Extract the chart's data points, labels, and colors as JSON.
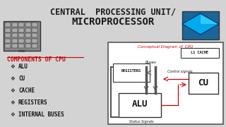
{
  "title_line1": "CENTRAL  PROCESSING UNIT/",
  "title_line2": "MICROPROCESSOR",
  "bg_color": "#d3d3d3",
  "title_color": "#1a1a1a",
  "components_title": "COMPONENTS OF CPU",
  "components_title_color": "#cc0000",
  "components": [
    "ALU",
    "CU",
    "CACHE",
    "REGISTERS",
    "INTERNAL BUSES"
  ],
  "diagram_title": "Conceptual Diagram of  CPU",
  "diagram_title_color": "#cc0000",
  "diagram_bg": "#ffffff",
  "diagram_border_color": "#555555",
  "l1_cache_label": "L1 CACHE",
  "registers_label": "REGISTERS",
  "alu_label": "ALU",
  "cu_label": "CU",
  "buses_label": "Buses",
  "control_signals_label": "Control signals",
  "status_signals_label": "Status Signals",
  "box_color": "#ffffff",
  "box_edge_color": "#333333",
  "red_line_color": "#cc0000",
  "bus_bar_color": "#555555"
}
